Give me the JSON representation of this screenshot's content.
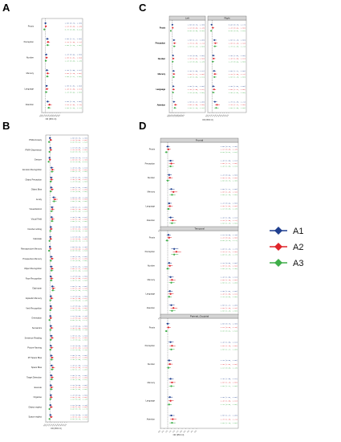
{
  "panels": [
    {
      "id": "A",
      "label": "A"
    },
    {
      "id": "B",
      "label": "B"
    },
    {
      "id": "C",
      "label": "C"
    },
    {
      "id": "D",
      "label": "D"
    }
  ],
  "colors": {
    "A1": "#1f3f8f",
    "A2": "#e0242a",
    "A3": "#3fae49"
  },
  "legend": {
    "items": [
      "A1",
      "A2",
      "A3"
    ]
  },
  "chart_data": [
    {
      "panel": "A",
      "type": "forest",
      "xlabel": "OR (95% CI)",
      "ref_line": 1,
      "xlim": [
        0,
        5
      ],
      "series": [
        {
          "name": "A1"
        },
        {
          "name": "A2"
        },
        {
          "name": "A3"
        }
      ],
      "categories": [
        "Praxis",
        "Perception",
        "Number",
        "Memory",
        "Language",
        "Attention"
      ],
      "values": {
        "A1": [
          1.0,
          1.5,
          1.2,
          1.4,
          1.3,
          1.6
        ],
        "A2": [
          1.1,
          1.7,
          1.3,
          1.6,
          1.4,
          2.1
        ],
        "A3": [
          0.7,
          1.6,
          1.1,
          1.5,
          1.2,
          1.9
        ]
      }
    },
    {
      "panel": "B",
      "type": "forest",
      "xlabel": "OR (95% CI)",
      "ref_line": 1,
      "xlim": [
        0,
        5
      ],
      "series": [
        {
          "name": "A1"
        },
        {
          "name": "A2"
        },
        {
          "name": "A3"
        }
      ],
      "categories": [
        "PNFA Anxiety",
        "PNFA Depression",
        "Gesture",
        "Emotion Recognition",
        "Object Perception",
        "Object Bias",
        "Acuity",
        "Visual Extinct",
        "Visual Field",
        "Number writing",
        "Calculate",
        "Retrospective Memory",
        "Prospective Memory",
        "Object Recognition",
        "Face Recognition",
        "Digit span",
        "Episodic Memory",
        "Verb Recognition",
        "Orientation",
        "Semantics",
        "Sentence Reading",
        "Picture Naming",
        "RT Space Bias",
        "Space Bias",
        "Target Detection",
        "Execute",
        "Organise",
        "Object neglect",
        "Space neglect"
      ],
      "values": {
        "A1": [
          1.0,
          1.1,
          0.9,
          1.4,
          1.3,
          1.3,
          1.9,
          1.5,
          1.4,
          1.2,
          1.1,
          1.0,
          1.3,
          1.3,
          1.2,
          1.6,
          1.2,
          1.2,
          1.1,
          1.2,
          1.3,
          1.2,
          1.3,
          1.4,
          1.3,
          1.2,
          1.2,
          1.1,
          1.1
        ],
        "A2": [
          1.2,
          1.2,
          1.0,
          1.6,
          1.4,
          1.5,
          2.2,
          1.6,
          1.6,
          1.3,
          1.2,
          1.1,
          1.5,
          1.5,
          1.4,
          1.8,
          1.4,
          1.3,
          1.2,
          1.4,
          1.5,
          1.4,
          1.5,
          1.7,
          1.5,
          1.4,
          1.3,
          1.3,
          1.3
        ],
        "A3": [
          0.8,
          0.9,
          0.7,
          1.5,
          1.2,
          1.2,
          2.0,
          1.4,
          1.5,
          1.1,
          0.9,
          0.8,
          1.2,
          1.4,
          1.3,
          1.7,
          1.1,
          1.1,
          0.9,
          1.1,
          1.2,
          1.1,
          1.4,
          1.5,
          1.4,
          1.3,
          1.1,
          0.9,
          0.9
        ]
      }
    },
    {
      "panel": "C",
      "type": "forest",
      "xlabel": "OR (95% CI)",
      "ref_line": 1,
      "xlim": [
        0,
        5
      ],
      "facets": [
        "Left",
        "Right"
      ],
      "series": [
        {
          "name": "A1"
        },
        {
          "name": "A2"
        },
        {
          "name": "A3"
        }
      ],
      "categories": [
        "Praxis",
        "Perception",
        "Number",
        "Memory",
        "Language",
        "Attention"
      ],
      "values": {
        "Left": {
          "A1": [
            1.0,
            1.5,
            1.2,
            1.4,
            1.3,
            1.5
          ],
          "A2": [
            1.1,
            1.7,
            1.3,
            1.5,
            1.4,
            2.0
          ],
          "A3": [
            0.5,
            1.6,
            1.1,
            1.4,
            1.2,
            1.8
          ]
        },
        "Right": {
          "A1": [
            0.9,
            1.6,
            1.3,
            1.5,
            1.3,
            1.7
          ],
          "A2": [
            1.2,
            1.8,
            1.4,
            1.7,
            1.5,
            2.2
          ],
          "A3": [
            0.8,
            1.7,
            1.2,
            1.6,
            1.3,
            2.0
          ]
        }
      }
    },
    {
      "panel": "D",
      "type": "forest",
      "xlabel": "OR (95% CI)",
      "ref_line": 1,
      "xlim": [
        0,
        5
      ],
      "facets": [
        "Frontal",
        "Temporal",
        "Parietal_Occipital"
      ],
      "series": [
        {
          "name": "A1"
        },
        {
          "name": "A2"
        },
        {
          "name": "A3"
        }
      ],
      "categories": [
        "Praxis",
        "Perception",
        "Number",
        "Memory",
        "Language",
        "Attention"
      ],
      "values": {
        "Frontal": {
          "A1": [
            1.0,
            1.4,
            1.2,
            1.5,
            1.2,
            1.4
          ],
          "A2": [
            1.1,
            1.5,
            1.3,
            1.8,
            1.3,
            1.7
          ],
          "A3": [
            0.8,
            1.4,
            1.0,
            1.6,
            1.1,
            1.6
          ]
        },
        "Temporal": {
          "A1": [
            1.1,
            1.9,
            1.2,
            1.4,
            1.3,
            1.5
          ],
          "A2": [
            1.2,
            2.2,
            1.3,
            1.6,
            1.4,
            1.8
          ],
          "A3": [
            0.9,
            1.9,
            1.0,
            1.5,
            1.2,
            1.6
          ]
        },
        "Parietal_Occipital": {
          "A1": [
            1.0,
            1.4,
            1.2,
            1.4,
            1.3,
            1.5
          ],
          "A2": [
            1.1,
            1.6,
            1.3,
            1.6,
            1.4,
            1.7
          ],
          "A3": [
            0.8,
            1.5,
            1.1,
            1.5,
            1.2,
            1.6
          ]
        }
      }
    }
  ]
}
